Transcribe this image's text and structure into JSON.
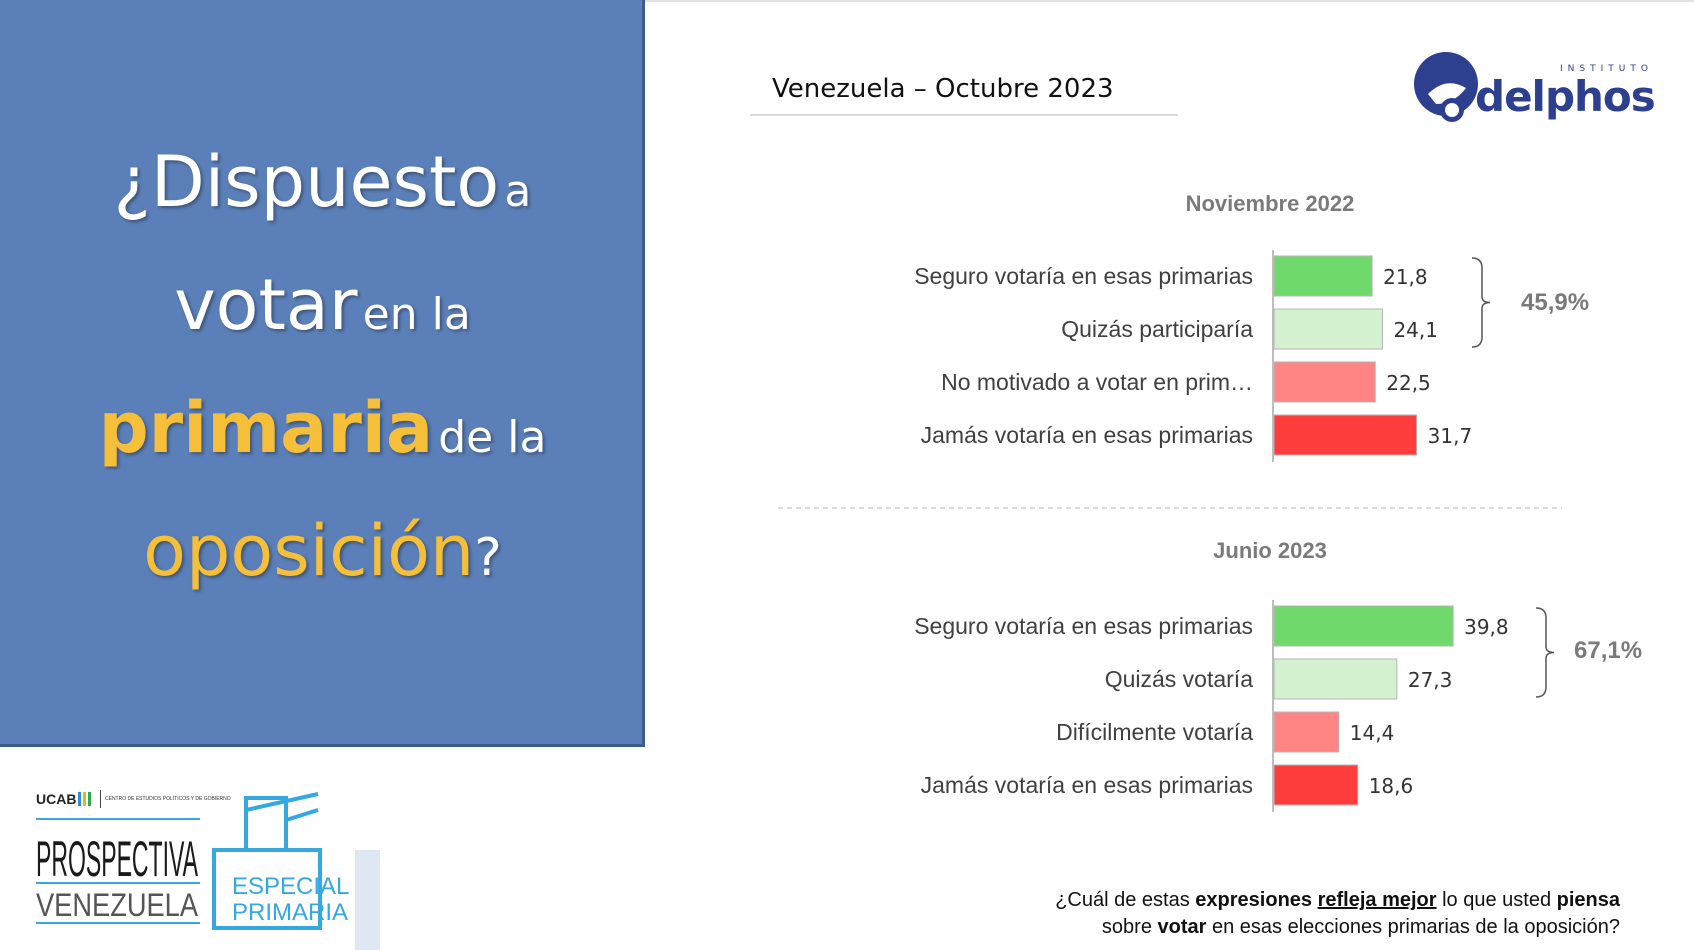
{
  "headline": {
    "w1": "¿Dispuesto",
    "w2": "a",
    "w3": "votar",
    "w4": "en la",
    "w5": "primaria",
    "w6": "de la",
    "w7": "oposición",
    "w8": "?"
  },
  "subtitle": "Venezuela  –  Octubre 2023",
  "logo": {
    "name": "delphos",
    "tagline": "INSTITUTO"
  },
  "brand": {
    "ucab": "UCAB",
    "centro": "CENTRO DE ESTUDIOS POLÍTICOS Y DE GOBIERNO",
    "line1": "PROSPECTIVA",
    "line2": "VENEZUELA",
    "especial1": "ESPECIAL",
    "especial2": "PRIMARIA"
  },
  "question": {
    "p1": "¿Cuál de estas ",
    "p2": "expresiones",
    "p3": " ",
    "p4": "refleja mejor",
    "p5": " lo que usted ",
    "p6": "piensa",
    "p7": "sobre ",
    "p8": "votar",
    "p9": " en esas elecciones primarias de la oposición?"
  },
  "colors": {
    "panel": "#5b7fb8",
    "gold": "#f6bf3a",
    "dark_green": "#70d96b",
    "light_green": "#d4f2cf",
    "light_red": "#ff8585",
    "dark_red": "#ff3d3d"
  },
  "chart_data": [
    {
      "type": "bar",
      "orientation": "horizontal",
      "title": "Noviembre 2022",
      "categories": [
        "Seguro votaría en esas primarias",
        "Quizás participaría",
        "No motivado a votar en prim…",
        "Jamás votaría en esas primarias"
      ],
      "values": [
        21.8,
        24.1,
        22.5,
        31.7
      ],
      "value_labels": [
        "21,8",
        "24,1",
        "22,5",
        "31,7"
      ],
      "bar_colors": [
        "#70d96b",
        "#d4f2cf",
        "#ff8585",
        "#ff3d3d"
      ],
      "bracket_label": "45,9%",
      "xlim": [
        0,
        40
      ]
    },
    {
      "type": "bar",
      "orientation": "horizontal",
      "title": "Junio 2023",
      "categories": [
        "Seguro votaría en esas primarias",
        "Quizás votaría",
        "Difícilmente votaría",
        "Jamás votaría en esas primarias"
      ],
      "values": [
        39.8,
        27.3,
        14.4,
        18.6
      ],
      "value_labels": [
        "39,8",
        "27,3",
        "14,4",
        "18,6"
      ],
      "bar_colors": [
        "#70d96b",
        "#d4f2cf",
        "#ff8585",
        "#ff3d3d"
      ],
      "bracket_label": "67,1%",
      "xlim": [
        0,
        40
      ]
    }
  ]
}
